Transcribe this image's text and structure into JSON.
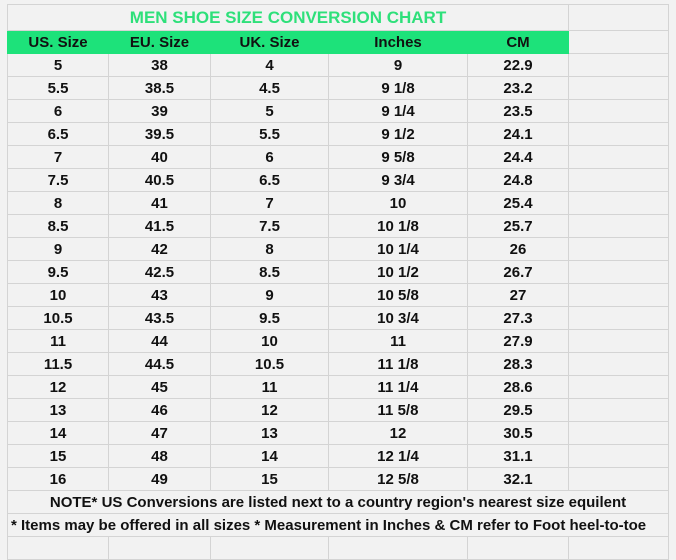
{
  "title": "MEN SHOE SIZE CONVERSION CHART",
  "colors": {
    "header_bg": "#1de27a",
    "title_text": "#2ee07a"
  },
  "headers": [
    "US. Size",
    "EU. Size",
    "UK. Size",
    "Inches",
    "CM"
  ],
  "rows": [
    [
      "5",
      "38",
      "4",
      "9",
      "22.9"
    ],
    [
      "5.5",
      "38.5",
      "4.5",
      "9 1/8",
      "23.2"
    ],
    [
      "6",
      "39",
      "5",
      "9 1/4",
      "23.5"
    ],
    [
      "6.5",
      "39.5",
      "5.5",
      "9 1/2",
      "24.1"
    ],
    [
      "7",
      "40",
      "6",
      "9 5/8",
      "24.4"
    ],
    [
      "7.5",
      "40.5",
      "6.5",
      "9 3/4",
      "24.8"
    ],
    [
      "8",
      "41",
      "7",
      "10",
      "25.4"
    ],
    [
      "8.5",
      "41.5",
      "7.5",
      "10 1/8",
      "25.7"
    ],
    [
      "9",
      "42",
      "8",
      "10 1/4",
      "26"
    ],
    [
      "9.5",
      "42.5",
      "8.5",
      "10 1/2",
      "26.7"
    ],
    [
      "10",
      "43",
      "9",
      "10 5/8",
      "27"
    ],
    [
      "10.5",
      "43.5",
      "9.5",
      "10 3/4",
      "27.3"
    ],
    [
      "11",
      "44",
      "10",
      "11",
      "27.9"
    ],
    [
      "11.5",
      "44.5",
      "10.5",
      "11 1/8",
      "28.3"
    ],
    [
      "12",
      "45",
      "11",
      "11 1/4",
      "28.6"
    ],
    [
      "13",
      "46",
      "12",
      "11 5/8",
      "29.5"
    ],
    [
      "14",
      "47",
      "13",
      "12",
      "30.5"
    ],
    [
      "15",
      "48",
      "14",
      "12 1/4",
      "31.1"
    ],
    [
      "16",
      "49",
      "15",
      "12 5/8",
      "32.1"
    ]
  ],
  "note1": "NOTE* US Conversions are listed next to a country region's nearest size equilent",
  "note2": "* Items may be offered in all sizes * Measurement in Inches & CM refer to Foot heel-to-toe"
}
